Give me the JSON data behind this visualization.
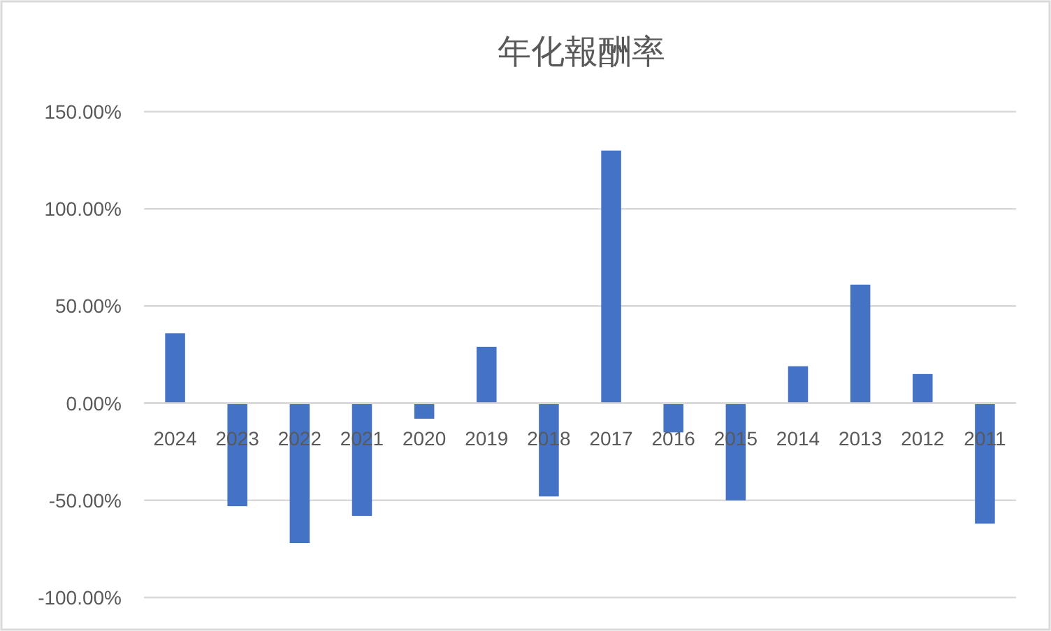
{
  "chart_data": {
    "type": "bar",
    "title": "年化報酬率",
    "categories": [
      "2024",
      "2023",
      "2022",
      "2021",
      "2020",
      "2019",
      "2018",
      "2017",
      "2016",
      "2015",
      "2014",
      "2013",
      "2012",
      "2011"
    ],
    "values": [
      36,
      -53,
      -72,
      -58,
      -8,
      29,
      -48,
      130,
      -15,
      -50,
      19,
      61,
      15,
      -62
    ],
    "color": "#4472c4",
    "ylim": [
      -100,
      150
    ],
    "yticks": [
      {
        "value": -100,
        "label": "-100.00%"
      },
      {
        "value": -50,
        "label": "-50.00%"
      },
      {
        "value": 0,
        "label": "0.00%"
      },
      {
        "value": 50,
        "label": "50.00%"
      },
      {
        "value": 100,
        "label": "100.00%"
      },
      {
        "value": 150,
        "label": "150.00%"
      }
    ],
    "grid": "y"
  }
}
